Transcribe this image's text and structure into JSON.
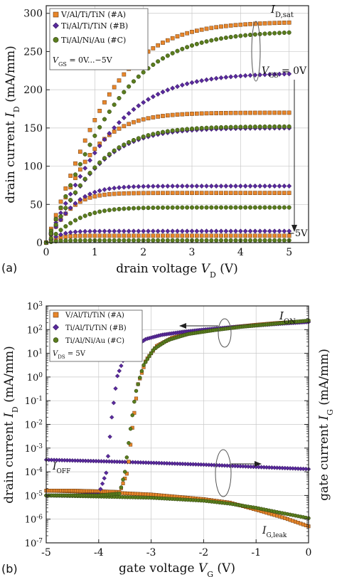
{
  "colors": {
    "A": "#e8862a",
    "B": "#5a2a9e",
    "C": "#5a7d1e"
  },
  "chart_data": [
    {
      "type": "scatter",
      "panel_label": "(a)",
      "xlabel_text": "drain voltage ",
      "xlabel_var": "V",
      "xlabel_sub": "D",
      "xlabel_unit": " (V)",
      "ylabel_text": "drain current ",
      "ylabel_var": "I",
      "ylabel_sub": "D",
      "ylabel_unit": " (mA/mm)",
      "xlim": [
        0,
        5.4
      ],
      "ylim": [
        0,
        310
      ],
      "xticks": [
        0,
        1,
        2,
        3,
        4,
        5
      ],
      "xtick_labels": [
        "0",
        "1",
        "2",
        "3",
        "4",
        "5"
      ],
      "yticks": [
        0,
        50,
        100,
        150,
        200,
        250,
        300
      ],
      "ytick_labels": [
        "0",
        "50",
        "100",
        "150",
        "200",
        "250",
        "300"
      ],
      "grid": true,
      "legend": [
        "V/Al/Ti/TiN (#A)",
        "Ti/Al/Ti/TiN (#B)",
        "Ti/Al/Ni/Au (#C)"
      ],
      "legend_placement": "top-left",
      "condition_label": "V",
      "condition_sub": "GS",
      "condition_value": " = 0V...−5V",
      "annotations": {
        "id_sat_var": "I",
        "id_sat_sub": "D,sat",
        "vgs_var": "V",
        "vgs_sub": "GS",
        "vgs_value": " = 0V",
        "minus5": "−5V"
      },
      "curve_model": "I = Isat * tanh(Vd / Vk), Vd from 0 to 5 V, one curve per V_GS step",
      "series": [
        {
          "name": "V/Al/Ti/TiN (#A)",
          "group": "A",
          "isat": [
            289,
            170,
            65,
            9
          ],
          "vk": [
            1.6,
            1.1,
            0.6,
            0.3
          ]
        },
        {
          "name": "Ti/Al/Ti/TiN (#B)",
          "group": "B",
          "isat": [
            222,
            150,
            74,
            15
          ],
          "vk": [
            1.7,
            1.3,
            0.7,
            0.35
          ]
        },
        {
          "name": "Ti/Al/Ni/Au (#C)",
          "group": "C",
          "isat": [
            277,
            152,
            46,
            3
          ],
          "vk": [
            1.8,
            1.3,
            0.8,
            0.3
          ]
        }
      ]
    },
    {
      "type": "scatter",
      "panel_label": "(b)",
      "yscale": "log",
      "xlabel_text": "gate voltage ",
      "xlabel_var": "V",
      "xlabel_sub": "G",
      "xlabel_unit": " (V)",
      "ylabel_text": "drain current ",
      "ylabel_var": "I",
      "ylabel_sub": "D",
      "ylabel_unit": " (mA/mm)",
      "y2label_text": "gate current ",
      "y2label_var": "I",
      "y2label_sub": "G",
      "y2label_unit": " (mA/mm)",
      "xlim": [
        -5,
        0
      ],
      "ylim": [
        1e-07,
        1000.0
      ],
      "xticks": [
        -5,
        -4,
        -3,
        -2,
        -1,
        0
      ],
      "xtick_labels": [
        "-5",
        "-4",
        "-3",
        "-2",
        "-1",
        "0"
      ],
      "ytick_exponents": [
        -7,
        -6,
        -5,
        -4,
        -3,
        -2,
        -1,
        0,
        1,
        2,
        3
      ],
      "grid": true,
      "legend": [
        "V/Al/Ti/TiN (#A)",
        "Ti/Al/Ti/TiN (#B)",
        "Ti/Al/Ni/Au (#C)"
      ],
      "legend_placement": "top-left",
      "condition_label": "V",
      "condition_sub": "DS",
      "condition_value": " = 5V",
      "annotations": {
        "ion_var": "I",
        "ion_sub": "ON",
        "ioff_var": "I",
        "ioff_sub": "OFF",
        "igleak_var": "I",
        "igleak_sub": "G,leak"
      },
      "drain_current": [
        {
          "name": "V/Al/Ti/TiN (#A)",
          "group": "A",
          "x": [
            -5,
            -4.5,
            -4,
            -3.6,
            -3.45,
            -3.35,
            -3.25,
            -3.1,
            -2.9,
            -2.6,
            -2.2,
            -1.8,
            -1.4,
            -1.0,
            -0.6,
            0
          ],
          "y": [
            1.6e-05,
            1.6e-05,
            1.5e-05,
            1.4e-05,
            0.0001,
            0.01,
            0.5,
            5,
            20,
            45,
            75,
            100,
            130,
            160,
            190,
            230
          ]
        },
        {
          "name": "Ti/Al/Ti/TiN (#B)",
          "group": "B",
          "x": [
            -5,
            -4.5,
            -4.0,
            -3.85,
            -3.75,
            -3.65,
            -3.5,
            -3.3,
            -3.1,
            -2.8,
            -2.4,
            -2.0,
            -1.5,
            -1.0,
            -0.5,
            0
          ],
          "y": [
            1e-05,
            1e-05,
            1.1e-05,
            0.0001,
            0.02,
            1.0,
            8,
            20,
            40,
            60,
            80,
            100,
            125,
            150,
            180,
            210
          ]
        },
        {
          "name": "Ti/Al/Ni/Au (#C)",
          "group": "C",
          "x": [
            -5,
            -4.5,
            -4,
            -3.6,
            -3.5,
            -3.4,
            -3.3,
            -3.15,
            -2.95,
            -2.7,
            -2.3,
            -1.8,
            -1.3,
            -0.8,
            -0.4,
            0
          ],
          "y": [
            1e-05,
            1e-05,
            1e-05,
            1.2e-05,
            0.0001,
            0.005,
            0.2,
            3,
            15,
            35,
            65,
            95,
            130,
            165,
            200,
            240
          ]
        }
      ],
      "gate_current": [
        {
          "name": "V/Al/Ti/TiN (#A)",
          "group": "A",
          "x": [
            -5,
            -4,
            -3,
            -2,
            -1.5,
            -1,
            -0.5,
            0
          ],
          "y": [
            1.6e-05,
            1.4e-05,
            1.1e-05,
            7e-06,
            5e-06,
            2.5e-06,
            1.2e-06,
            5e-07
          ]
        },
        {
          "name": "Ti/Al/Ti/TiN (#B)",
          "group": "B",
          "x": [
            -5,
            -4,
            -3,
            -2,
            -1,
            0
          ],
          "y": [
            0.00032,
            0.00028,
            0.00024,
            0.0002,
            0.00016,
            0.00013
          ]
        },
        {
          "name": "Ti/Al/Ni/Au (#C)",
          "group": "C",
          "x": [
            -5,
            -4,
            -3,
            -2,
            -1.5,
            -1,
            -0.5,
            0
          ],
          "y": [
            1e-05,
            9e-06,
            8e-06,
            6e-06,
            4.5e-06,
            3e-06,
            1.8e-06,
            1.1e-06
          ]
        }
      ]
    }
  ]
}
